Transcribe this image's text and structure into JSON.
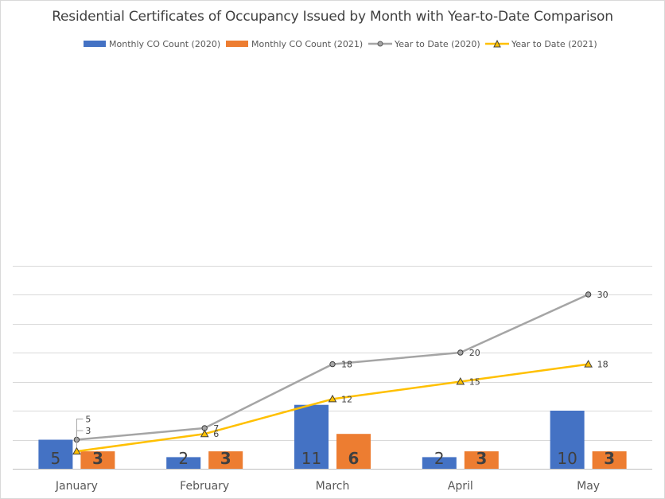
{
  "chart_data": {
    "type": "bar",
    "title": "Residential Certificates of Occupancy Issued by Month with Year-to-Date Comparison",
    "categories": [
      "January",
      "February",
      "March",
      "April",
      "May"
    ],
    "ylim": [
      0,
      35
    ],
    "grid": true,
    "legend_position": "top",
    "series": [
      {
        "name": "Monthly CO Count (2020)",
        "kind": "bar",
        "color": "#4472C4",
        "values": [
          5,
          2,
          11,
          2,
          10
        ],
        "labels": [
          "5",
          "2",
          "11",
          "2",
          "10"
        ]
      },
      {
        "name": "Monthly CO Count (2021)",
        "kind": "bar",
        "color": "#ED7D31",
        "values": [
          3,
          3,
          6,
          3,
          3
        ],
        "labels": [
          "3",
          "3",
          "6",
          "3",
          "3"
        ]
      },
      {
        "name": "Year to Date (2020)",
        "kind": "line",
        "marker": "circle",
        "color": "#A5A5A5",
        "values": [
          5,
          7,
          18,
          20,
          30
        ],
        "labels": [
          "5",
          "7",
          "18",
          "20",
          "30"
        ]
      },
      {
        "name": "Year to Date (2021)",
        "kind": "line",
        "marker": "triangle",
        "color": "#FFC000",
        "values": [
          3,
          6,
          12,
          15,
          18
        ],
        "labels": [
          "3",
          "6",
          "12",
          "15",
          "18"
        ]
      }
    ]
  }
}
